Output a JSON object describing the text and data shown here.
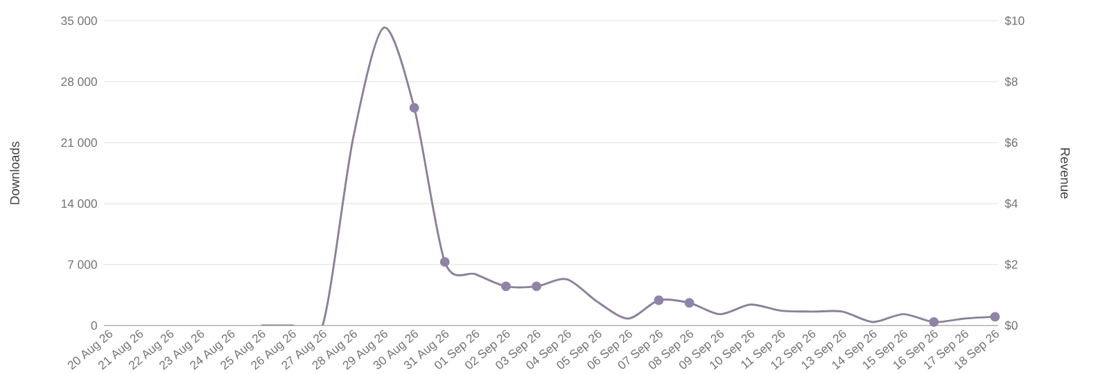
{
  "chart_data": {
    "type": "line",
    "ylabel": "Downloads",
    "y2label": "Revenue",
    "categories": [
      "20 Aug 26",
      "21 Aug 26",
      "22 Aug 26",
      "23 Aug 26",
      "24 Aug 26",
      "25 Aug 26",
      "26 Aug 26",
      "27 Aug 26",
      "28 Aug 26",
      "29 Aug 26",
      "30 Aug 26",
      "31 Aug 26",
      "01 Sep 26",
      "02 Sep 26",
      "03 Sep 26",
      "04 Sep 26",
      "05 Sep 26",
      "06 Sep 26",
      "07 Sep 26",
      "08 Sep 26",
      "09 Sep 26",
      "10 Sep 26",
      "11 Sep 26",
      "12 Sep 26",
      "13 Sep 26",
      "14 Sep 26",
      "15 Sep 26",
      "16 Sep 26",
      "17 Sep 26",
      "18 Sep 26"
    ],
    "series": [
      {
        "color": "#8b8198",
        "marker": "none",
        "line_style": "solid",
        "values": [
          null,
          null,
          null,
          null,
          null,
          0,
          0,
          0,
          21500,
          34200,
          25000,
          7300,
          5900,
          4500,
          4500,
          5300,
          2700,
          800,
          2900,
          2600,
          1300,
          2400,
          1700,
          1600,
          1600,
          400,
          1300,
          400,
          800,
          1000
        ]
      },
      {
        "type": "scatter",
        "color": "#8f84a8",
        "marker": "circle",
        "values": [
          null,
          null,
          null,
          null,
          null,
          null,
          null,
          null,
          null,
          null,
          25000,
          7300,
          null,
          4500,
          4500,
          null,
          null,
          null,
          2900,
          2600,
          null,
          null,
          null,
          null,
          null,
          null,
          null,
          400,
          null,
          1000
        ]
      }
    ],
    "ylim": [
      0,
      35000
    ],
    "yticks": [
      0,
      {
        "value": 7000,
        "label": "7 000"
      },
      {
        "value": 14000,
        "label": "14 000"
      },
      {
        "value": 21000,
        "label": "21 000"
      },
      {
        "value": 28000,
        "label": "28 000"
      },
      {
        "value": 35000,
        "label": "35 000"
      }
    ],
    "y2lim": [
      0,
      10
    ],
    "y2ticks": [
      {
        "value": 0,
        "label": "$0"
      },
      {
        "value": 2,
        "label": "$2"
      },
      {
        "value": 4,
        "label": "$4"
      },
      {
        "value": 6,
        "label": "$6"
      },
      {
        "value": 8,
        "label": "$8"
      },
      {
        "value": 10,
        "label": "$10"
      }
    ],
    "grid": "y",
    "legend": false
  }
}
